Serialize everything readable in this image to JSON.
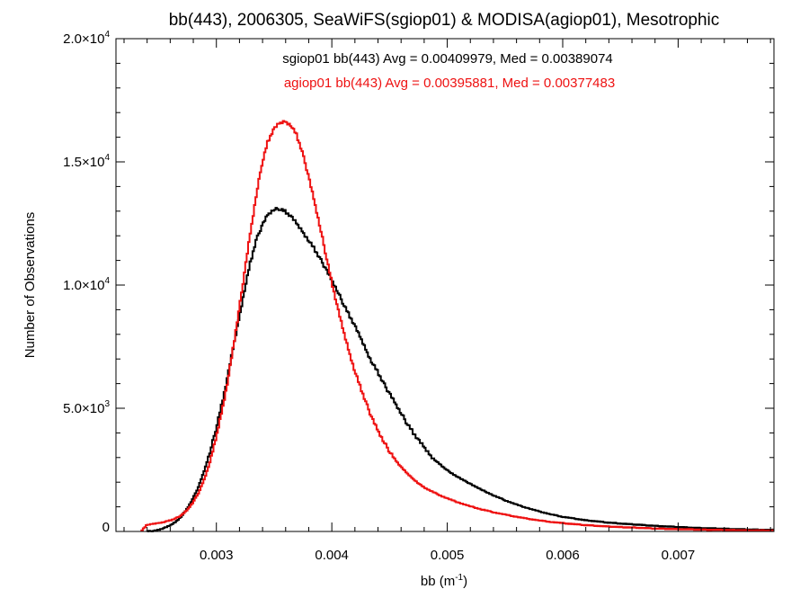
{
  "chart_data": {
    "type": "line",
    "title": "bb(443), 2006305, SeaWiFS(sgiop01) & MODISA(agiop01), Mesotrophic",
    "xlabel": "bb (m",
    "xlabel_sup": "-1",
    "xlabel_end": ")",
    "ylabel": "Number of Observations",
    "xlim": [
      0.00213,
      0.00783
    ],
    "ylim": [
      0,
      20000
    ],
    "x_ticks": [
      {
        "value": 0.003,
        "label": "0.003"
      },
      {
        "value": 0.004,
        "label": "0.004"
      },
      {
        "value": 0.005,
        "label": "0.005"
      },
      {
        "value": 0.006,
        "label": "0.006"
      },
      {
        "value": 0.007,
        "label": "0.007"
      }
    ],
    "y_ticks": [
      {
        "value": 0,
        "mant": "0",
        "exp": ""
      },
      {
        "value": 5000,
        "mant": "5.0×10",
        "exp": "3"
      },
      {
        "value": 10000,
        "mant": "1.0×10",
        "exp": "4"
      },
      {
        "value": 15000,
        "mant": "1.5×10",
        "exp": "4"
      },
      {
        "value": 20000,
        "mant": "2.0×10",
        "exp": "4"
      }
    ],
    "grid": false,
    "legend_position": "top-center",
    "series": [
      {
        "name": "sgiop01 bb(443) Avg = 0.00409979, Med = 0.00389074",
        "color": "#000000",
        "points": [
          [
            0.0024,
            0
          ],
          [
            0.00245,
            20
          ],
          [
            0.0025,
            60
          ],
          [
            0.00255,
            130
          ],
          [
            0.0026,
            230
          ],
          [
            0.00265,
            380
          ],
          [
            0.0027,
            600
          ],
          [
            0.00275,
            900
          ],
          [
            0.0028,
            1300
          ],
          [
            0.00285,
            1800
          ],
          [
            0.0029,
            2450
          ],
          [
            0.00295,
            3200
          ],
          [
            0.003,
            4100
          ],
          [
            0.00305,
            5100
          ],
          [
            0.0031,
            6200
          ],
          [
            0.00315,
            7400
          ],
          [
            0.0032,
            8600
          ],
          [
            0.00325,
            9800
          ],
          [
            0.0033,
            10900
          ],
          [
            0.00335,
            11800
          ],
          [
            0.0034,
            12400
          ],
          [
            0.00345,
            12850
          ],
          [
            0.0035,
            13050
          ],
          [
            0.00355,
            13100
          ],
          [
            0.0036,
            13000
          ],
          [
            0.00365,
            12800
          ],
          [
            0.0037,
            12500
          ],
          [
            0.00375,
            12200
          ],
          [
            0.0038,
            11850
          ],
          [
            0.00385,
            11500
          ],
          [
            0.0039,
            11100
          ],
          [
            0.00395,
            10700
          ],
          [
            0.004,
            10250
          ],
          [
            0.00405,
            9800
          ],
          [
            0.0041,
            9300
          ],
          [
            0.00415,
            8850
          ],
          [
            0.0042,
            8400
          ],
          [
            0.00425,
            7900
          ],
          [
            0.0043,
            7400
          ],
          [
            0.00435,
            6900
          ],
          [
            0.0044,
            6500
          ],
          [
            0.00445,
            6050
          ],
          [
            0.0045,
            5650
          ],
          [
            0.00455,
            5250
          ],
          [
            0.0046,
            4850
          ],
          [
            0.00465,
            4450
          ],
          [
            0.0047,
            4100
          ],
          [
            0.00475,
            3750
          ],
          [
            0.0048,
            3450
          ],
          [
            0.00485,
            3150
          ],
          [
            0.0049,
            2900
          ],
          [
            0.00495,
            2700
          ],
          [
            0.005,
            2500
          ],
          [
            0.0051,
            2200
          ],
          [
            0.0052,
            1950
          ],
          [
            0.0053,
            1700
          ],
          [
            0.0054,
            1480
          ],
          [
            0.0055,
            1280
          ],
          [
            0.0056,
            1100
          ],
          [
            0.0057,
            950
          ],
          [
            0.0058,
            820
          ],
          [
            0.0059,
            700
          ],
          [
            0.006,
            600
          ],
          [
            0.0062,
            460
          ],
          [
            0.0064,
            360
          ],
          [
            0.0066,
            290
          ],
          [
            0.0068,
            230
          ],
          [
            0.007,
            180
          ],
          [
            0.0072,
            140
          ],
          [
            0.0074,
            110
          ],
          [
            0.0076,
            80
          ],
          [
            0.00783,
            60
          ]
        ]
      },
      {
        "name": "agiop01 bb(443) Avg = 0.00395881, Med = 0.00377483",
        "color": "#ee1111",
        "points": [
          [
            0.00235,
            0
          ],
          [
            0.0024,
            250
          ],
          [
            0.00245,
            300
          ],
          [
            0.0025,
            340
          ],
          [
            0.00255,
            380
          ],
          [
            0.0026,
            440
          ],
          [
            0.00265,
            520
          ],
          [
            0.0027,
            650
          ],
          [
            0.00275,
            850
          ],
          [
            0.0028,
            1150
          ],
          [
            0.00285,
            1550
          ],
          [
            0.0029,
            2100
          ],
          [
            0.00295,
            2800
          ],
          [
            0.003,
            3700
          ],
          [
            0.00305,
            4800
          ],
          [
            0.0031,
            6000
          ],
          [
            0.00315,
            7400
          ],
          [
            0.0032,
            8900
          ],
          [
            0.00325,
            10500
          ],
          [
            0.0033,
            12100
          ],
          [
            0.00335,
            13600
          ],
          [
            0.0034,
            14900
          ],
          [
            0.00345,
            15800
          ],
          [
            0.0035,
            16300
          ],
          [
            0.00355,
            16550
          ],
          [
            0.0036,
            16650
          ],
          [
            0.00365,
            16500
          ],
          [
            0.0037,
            16100
          ],
          [
            0.00375,
            15400
          ],
          [
            0.0038,
            14500
          ],
          [
            0.00385,
            13500
          ],
          [
            0.0039,
            12450
          ],
          [
            0.00395,
            11350
          ],
          [
            0.004,
            10250
          ],
          [
            0.00405,
            9200
          ],
          [
            0.0041,
            8250
          ],
          [
            0.00415,
            7400
          ],
          [
            0.0042,
            6600
          ],
          [
            0.00425,
            5900
          ],
          [
            0.0043,
            5250
          ],
          [
            0.00435,
            4650
          ],
          [
            0.0044,
            4150
          ],
          [
            0.00445,
            3700
          ],
          [
            0.0045,
            3300
          ],
          [
            0.00455,
            2950
          ],
          [
            0.0046,
            2650
          ],
          [
            0.00465,
            2400
          ],
          [
            0.0047,
            2180
          ],
          [
            0.00475,
            1980
          ],
          [
            0.0048,
            1800
          ],
          [
            0.0049,
            1560
          ],
          [
            0.005,
            1350
          ],
          [
            0.0051,
            1180
          ],
          [
            0.0052,
            1030
          ],
          [
            0.0053,
            900
          ],
          [
            0.0054,
            790
          ],
          [
            0.0055,
            690
          ],
          [
            0.0056,
            600
          ],
          [
            0.0057,
            520
          ],
          [
            0.0058,
            450
          ],
          [
            0.0059,
            390
          ],
          [
            0.006,
            340
          ],
          [
            0.0062,
            260
          ],
          [
            0.0064,
            200
          ],
          [
            0.0066,
            160
          ],
          [
            0.0068,
            120
          ],
          [
            0.007,
            95
          ],
          [
            0.0072,
            75
          ],
          [
            0.0074,
            60
          ],
          [
            0.0076,
            45
          ],
          [
            0.00783,
            35
          ]
        ]
      }
    ]
  }
}
